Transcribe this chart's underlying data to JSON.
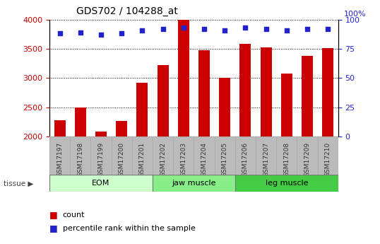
{
  "title": "GDS702 / 104288_at",
  "samples": [
    "GSM17197",
    "GSM17198",
    "GSM17199",
    "GSM17200",
    "GSM17201",
    "GSM17202",
    "GSM17203",
    "GSM17204",
    "GSM17205",
    "GSM17206",
    "GSM17207",
    "GSM17208",
    "GSM17209",
    "GSM17210"
  ],
  "counts": [
    2285,
    2500,
    2090,
    2270,
    2920,
    3220,
    4000,
    3470,
    3000,
    3580,
    3530,
    3080,
    3380,
    3510
  ],
  "percentiles": [
    88,
    89,
    87,
    88,
    91,
    92,
    93,
    92,
    91,
    93,
    92,
    91,
    92,
    92
  ],
  "bar_color": "#cc0000",
  "dot_color": "#2222cc",
  "ylim_left": [
    2000,
    4000
  ],
  "ylim_right": [
    0,
    100
  ],
  "yticks_left": [
    2000,
    2500,
    3000,
    3500,
    4000
  ],
  "yticks_right": [
    0,
    25,
    50,
    75,
    100
  ],
  "groups": [
    {
      "label": "EOM",
      "start": 0,
      "end": 5,
      "color": "#ccffcc"
    },
    {
      "label": "jaw muscle",
      "start": 5,
      "end": 9,
      "color": "#88ee88"
    },
    {
      "label": "leg muscle",
      "start": 9,
      "end": 14,
      "color": "#44cc44"
    }
  ],
  "legend_count_label": "count",
  "legend_pct_label": "percentile rank within the sample",
  "left_tick_color": "#cc0000",
  "right_tick_color": "#2222cc",
  "grid_color": "#888888",
  "plot_bg": "#dddddd",
  "xlabel_bg": "#bbbbbb",
  "right_ylabel": "100%"
}
